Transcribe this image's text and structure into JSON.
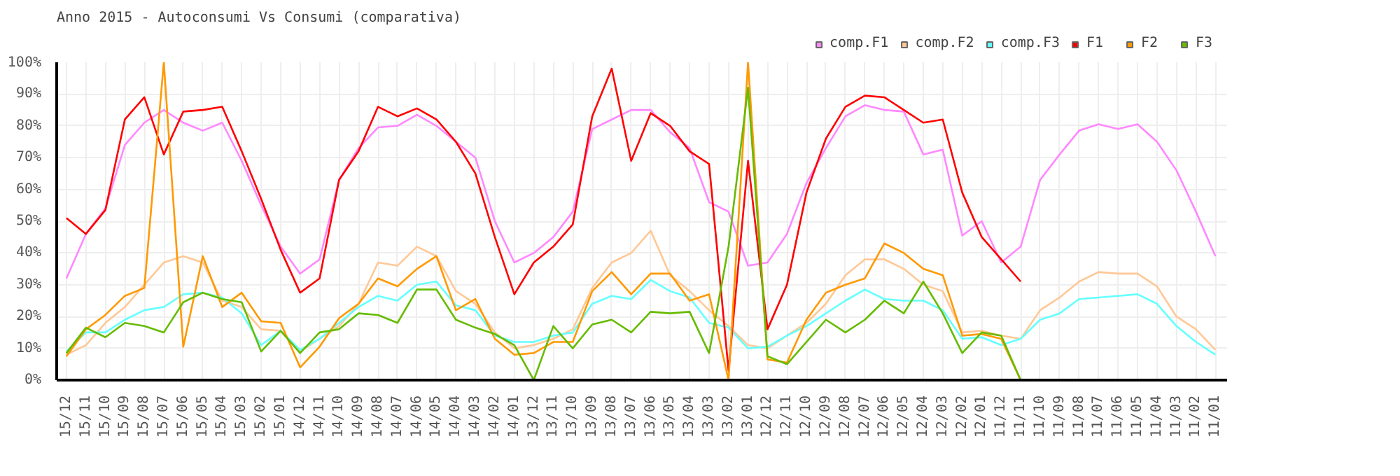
{
  "chart_data": {
    "type": "line",
    "title": "Anno 2015 - Autoconsumi Vs Consumi (comparativa)",
    "categories": [
      "15/12",
      "15/11",
      "15/10",
      "15/09",
      "15/08",
      "15/07",
      "15/06",
      "15/05",
      "15/04",
      "15/03",
      "15/02",
      "15/01",
      "14/12",
      "14/11",
      "14/10",
      "14/09",
      "14/08",
      "14/07",
      "14/06",
      "14/05",
      "14/04",
      "14/03",
      "14/02",
      "14/01",
      "13/12",
      "13/11",
      "13/10",
      "13/09",
      "13/08",
      "13/07",
      "13/06",
      "13/05",
      "13/04",
      "13/03",
      "13/02",
      "13/01",
      "12/12",
      "12/11",
      "12/10",
      "12/09",
      "12/08",
      "12/07",
      "12/06",
      "12/05",
      "12/04",
      "12/03",
      "12/02",
      "12/01",
      "11/12",
      "11/11",
      "11/10",
      "11/09",
      "11/08",
      "11/07",
      "11/06",
      "11/05",
      "11/04",
      "11/03",
      "11/02",
      "11/01"
    ],
    "series": [
      {
        "name": "comp.F1",
        "color": "#ff88ff",
        "values": [
          32,
          46,
          54,
          74,
          81,
          85,
          81,
          78.5,
          81,
          69,
          55,
          42,
          33.5,
          38,
          63,
          73,
          79.5,
          80,
          83.5,
          80,
          75,
          70,
          50,
          37,
          40,
          45,
          53,
          79,
          82,
          85,
          85,
          78,
          73,
          56,
          53,
          36,
          37,
          46,
          62,
          73,
          83,
          86.5,
          85,
          84.5,
          71,
          72.5,
          45.5,
          50,
          37,
          42,
          63,
          71,
          78.5,
          80.5,
          79,
          80.5,
          75,
          66,
          53,
          39
        ]
      },
      {
        "name": "comp.F2",
        "color": "#ffc896",
        "values": [
          8,
          11,
          18,
          23,
          30,
          37,
          39,
          37,
          25,
          23,
          16,
          15.5,
          9,
          13,
          17,
          24,
          37,
          36,
          42,
          39,
          28,
          24,
          15,
          10,
          11,
          13,
          16,
          29,
          37,
          40,
          47,
          33,
          28,
          22,
          17,
          11,
          10,
          14,
          18,
          24,
          33,
          38,
          38,
          35,
          30,
          28,
          15,
          15.5,
          14,
          13,
          22,
          26,
          31,
          34,
          33.5,
          33.5,
          29.5,
          20,
          16,
          9.5
        ]
      },
      {
        "name": "comp.F3",
        "color": "#66ffff",
        "values": [
          9,
          15,
          15,
          19,
          22,
          23,
          27,
          27.5,
          26,
          21,
          11,
          15.5,
          9.5,
          13,
          18,
          23,
          26.5,
          25,
          30,
          31,
          23.5,
          22,
          14,
          12,
          12,
          14,
          15,
          24,
          26.5,
          25.5,
          31.5,
          28,
          26,
          18,
          16.5,
          10,
          10.5,
          14,
          17,
          21,
          25,
          28.5,
          25.5,
          25,
          25,
          22,
          13,
          13.5,
          11,
          13,
          19,
          21,
          25.5,
          26,
          26.5,
          27,
          24,
          17,
          12,
          8
        ]
      },
      {
        "name": "F1",
        "color": "#ff0000",
        "values": [
          51,
          46,
          53.5,
          82,
          89,
          71,
          84.5,
          85,
          86,
          72,
          57,
          41,
          27.5,
          32,
          63,
          72,
          86,
          83,
          85.5,
          82,
          75,
          65,
          45,
          27,
          37,
          42,
          49,
          83,
          98,
          69,
          84,
          80,
          72,
          68,
          3,
          69,
          16,
          30,
          59,
          76,
          86,
          89.5,
          89,
          85,
          81,
          82,
          59,
          45,
          38,
          31,
          null,
          null,
          null,
          null,
          null,
          null,
          null,
          null,
          null,
          null
        ]
      },
      {
        "name": "F2",
        "color": "#ff9900",
        "values": [
          7.5,
          16,
          20.5,
          26.5,
          29,
          100,
          10.5,
          39,
          23,
          27.5,
          18.5,
          18,
          4,
          10.5,
          19.5,
          24,
          32,
          29.5,
          35,
          39,
          22,
          25.5,
          13,
          8,
          8.5,
          12,
          12,
          28,
          34,
          27,
          33.5,
          33.5,
          25,
          27,
          0,
          100,
          6.5,
          5.5,
          19,
          27.5,
          30,
          32,
          43,
          40,
          35,
          33,
          14,
          14.5,
          13,
          0,
          null,
          null,
          null,
          null,
          null,
          null,
          null,
          null,
          null,
          null
        ]
      },
      {
        "name": "F3",
        "color": "#66bb00",
        "values": [
          8.5,
          16.5,
          13.5,
          18,
          17,
          15,
          24.5,
          27.5,
          25.5,
          24.5,
          9,
          15.5,
          8.5,
          15,
          16,
          21,
          20.5,
          18,
          28.5,
          28.5,
          19,
          16.5,
          14.5,
          11,
          0,
          17,
          10,
          17.5,
          19,
          15,
          21.5,
          21,
          21.5,
          8.5,
          42,
          92,
          7.5,
          5,
          12,
          19,
          15,
          19,
          25,
          21,
          31,
          21,
          8.5,
          15,
          14,
          0,
          null,
          null,
          null,
          null,
          null,
          null,
          null,
          null,
          null,
          null
        ]
      }
    ],
    "ylim": [
      0,
      100
    ],
    "yticks": [
      {
        "value": 0,
        "label": "0%"
      },
      {
        "value": 10,
        "label": "10%"
      },
      {
        "value": 20,
        "label": "20%"
      },
      {
        "value": 30,
        "label": "30%"
      },
      {
        "value": 40,
        "label": "40%"
      },
      {
        "value": 50,
        "label": "50%"
      },
      {
        "value": 60,
        "label": "60%"
      },
      {
        "value": 70,
        "label": "70%"
      },
      {
        "value": 80,
        "label": "80%"
      },
      {
        "value": 90,
        "label": "90%"
      },
      {
        "value": 100,
        "label": "100%"
      }
    ],
    "grid": true,
    "legend": "top right",
    "marker": "none",
    "line_style": "solid"
  }
}
